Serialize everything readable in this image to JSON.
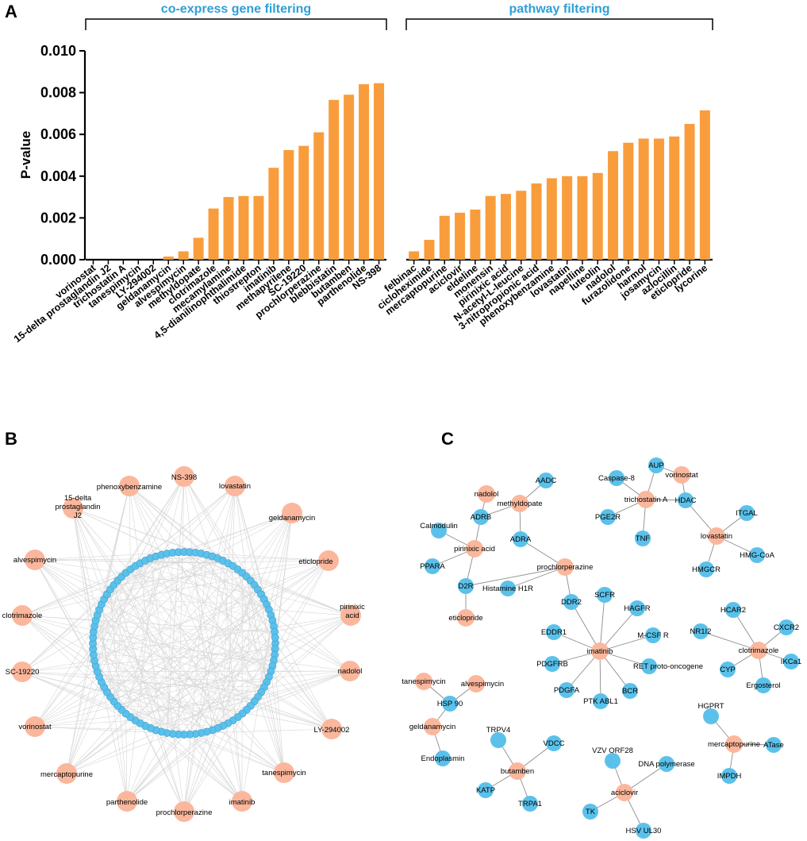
{
  "panels": {
    "a": "A",
    "b": "B",
    "c": "C"
  },
  "chart_data": {
    "type": "bar",
    "ylabel": "P-value",
    "ylim": [
      0,
      0.01
    ],
    "yticks": [
      "0.000",
      "0.002",
      "0.004",
      "0.006",
      "0.008",
      "0.010"
    ],
    "bar_color": "#f99d3c",
    "groups": [
      {
        "title": "co-express gene filtering",
        "categories": [
          "vorinostat",
          "15-delta prostaglandin J2",
          "trichostatin A",
          "tanespimycin",
          "LY-294002",
          "geldanamycin",
          "alvespimycin",
          "methyldopate",
          "clotrimazole",
          "mecamylamine",
          "4,5-dianilinophthalimide",
          "thiostrepton",
          "imatinib",
          "methapyrilene",
          "SC-19220",
          "prochlorperazine",
          "blebbistatin",
          "butamben",
          "parthenolide",
          "NS-398"
        ],
        "values": [
          0,
          0,
          0,
          0,
          0,
          0.00015,
          0.0004,
          0.00105,
          0.00245,
          0.003,
          0.00305,
          0.00305,
          0.0044,
          0.00525,
          0.00545,
          0.0061,
          0.00765,
          0.0079,
          0.0084,
          0.00845
        ]
      },
      {
        "title": "pathway filtering",
        "categories": [
          "felbinac",
          "cicloheximide",
          "mercaptopurine",
          "aciclovir",
          "eldeline",
          "monensin",
          "pirinixic acid",
          "N-acetyl-L-leucine",
          "3-nitropropionic acid",
          "phenoxybenzamine",
          "lovastatin",
          "napelline",
          "luteolin",
          "nadolol",
          "furazolidone",
          "harmol",
          "josamycin",
          "azlocillin",
          "eticlopride",
          "lycorine"
        ],
        "values": [
          0.0004,
          0.00095,
          0.0021,
          0.00225,
          0.0024,
          0.00305,
          0.00315,
          0.0033,
          0.00365,
          0.0039,
          0.004,
          0.004,
          0.00415,
          0.0052,
          0.0056,
          0.0058,
          0.0058,
          0.0059,
          0.0065,
          0.00715
        ]
      }
    ]
  },
  "network_b": {
    "drug_color": "#fbb79c",
    "target_color": "#5bc1ea",
    "drugs": [
      "NS-398",
      "lovastatin",
      "geldanamycin",
      "eticlopride",
      "pirinixic acid",
      "nadolol",
      "LY-294002",
      "tanespimycin",
      "imatinib",
      "prochlorperazine",
      "parthenolide",
      "mercaptopurine",
      "vorinostat",
      "SC-19220",
      "clotrimazole",
      "alvespimycin",
      "15-delta prostaglandin J2",
      "phenoxybenzamine"
    ],
    "target_count": 100
  },
  "network_c": {
    "nodes": [
      {
        "id": "nadolol",
        "type": "drug"
      },
      {
        "id": "methyldopate",
        "type": "drug"
      },
      {
        "id": "AADC",
        "type": "target"
      },
      {
        "id": "ADRB",
        "type": "target"
      },
      {
        "id": "Calmodulin",
        "type": "target"
      },
      {
        "id": "ADRA",
        "type": "target"
      },
      {
        "id": "pirinixic acid",
        "type": "drug"
      },
      {
        "id": "PPARA",
        "type": "target"
      },
      {
        "id": "prochlorperazine",
        "type": "drug"
      },
      {
        "id": "D2R",
        "type": "target"
      },
      {
        "id": "Histamine H1R",
        "type": "target"
      },
      {
        "id": "eticlopride",
        "type": "drug"
      },
      {
        "id": "AUP",
        "type": "target"
      },
      {
        "id": "vorinostat",
        "type": "drug"
      },
      {
        "id": "Caspase-8",
        "type": "target"
      },
      {
        "id": "trichostatin A",
        "type": "drug"
      },
      {
        "id": "HDAC",
        "type": "target"
      },
      {
        "id": "PGE2R",
        "type": "target"
      },
      {
        "id": "TNF",
        "type": "target"
      },
      {
        "id": "ITGAL",
        "type": "target"
      },
      {
        "id": "lovastatin",
        "type": "drug"
      },
      {
        "id": "HMG-CoA",
        "type": "target"
      },
      {
        "id": "HMGCR",
        "type": "target"
      },
      {
        "id": "DDR2",
        "type": "target"
      },
      {
        "id": "SCFR",
        "type": "target"
      },
      {
        "id": "HAGFR",
        "type": "target"
      },
      {
        "id": "EDDR1",
        "type": "target"
      },
      {
        "id": "imatinib",
        "type": "drug"
      },
      {
        "id": "M-CSF R",
        "type": "target"
      },
      {
        "id": "PDGFRB",
        "type": "target"
      },
      {
        "id": "RET proto-oncogene",
        "type": "target"
      },
      {
        "id": "PDGFA",
        "type": "target"
      },
      {
        "id": "BCR",
        "type": "target"
      },
      {
        "id": "PTK ABL1",
        "type": "target"
      },
      {
        "id": "HCAR2",
        "type": "target"
      },
      {
        "id": "NR1I2",
        "type": "target"
      },
      {
        "id": "CXCR2",
        "type": "target"
      },
      {
        "id": "clotrimazole",
        "type": "drug"
      },
      {
        "id": "CYP",
        "type": "target"
      },
      {
        "id": "IKCa1",
        "type": "target"
      },
      {
        "id": "Ergosterol",
        "type": "target"
      },
      {
        "id": "tanespimycin",
        "type": "drug"
      },
      {
        "id": "alvespimycin",
        "type": "drug"
      },
      {
        "id": "HSP 90",
        "type": "target"
      },
      {
        "id": "geldanamycin",
        "type": "drug"
      },
      {
        "id": "Endoplasmin",
        "type": "target"
      },
      {
        "id": "TRPV4",
        "type": "target"
      },
      {
        "id": "VDCC",
        "type": "target"
      },
      {
        "id": "butamben",
        "type": "drug"
      },
      {
        "id": "KATP",
        "type": "target"
      },
      {
        "id": "TRPA1",
        "type": "target"
      },
      {
        "id": "HGPRT",
        "type": "target"
      },
      {
        "id": "mercaptopurine",
        "type": "drug"
      },
      {
        "id": "ATase",
        "type": "target"
      },
      {
        "id": "IMPDH",
        "type": "target"
      },
      {
        "id": "VZV ORF28",
        "type": "target"
      },
      {
        "id": "DNA polymerase",
        "type": "target"
      },
      {
        "id": "aciclovir",
        "type": "drug"
      },
      {
        "id": "TK",
        "type": "target"
      },
      {
        "id": "HSV UL30",
        "type": "target"
      }
    ],
    "edges": [
      [
        "nadolol",
        "ADRB"
      ],
      [
        "methyldopate",
        "ADRB"
      ],
      [
        "methyldopate",
        "AADC"
      ],
      [
        "methyldopate",
        "ADRA"
      ],
      [
        "pirinixic acid",
        "Calmodulin"
      ],
      [
        "pirinixic acid",
        "ADRB"
      ],
      [
        "pirinixic acid",
        "PPARA"
      ],
      [
        "pirinixic acid",
        "D2R"
      ],
      [
        "prochlorperazine",
        "ADRA"
      ],
      [
        "prochlorperazine",
        "Histamine H1R"
      ],
      [
        "prochlorperazine",
        "D2R"
      ],
      [
        "prochlorperazine",
        "DDR2"
      ],
      [
        "eticlopride",
        "D2R"
      ],
      [
        "trichostatin A",
        "AUP"
      ],
      [
        "trichostatin A",
        "Caspase-8"
      ],
      [
        "trichostatin A",
        "HDAC"
      ],
      [
        "trichostatin A",
        "PGE2R"
      ],
      [
        "trichostatin A",
        "TNF"
      ],
      [
        "vorinostat",
        "AUP"
      ],
      [
        "vorinostat",
        "HDAC"
      ],
      [
        "lovastatin",
        "HDAC"
      ],
      [
        "lovastatin",
        "ITGAL"
      ],
      [
        "lovastatin",
        "HMG-CoA"
      ],
      [
        "lovastatin",
        "HMGCR"
      ],
      [
        "imatinib",
        "DDR2"
      ],
      [
        "imatinib",
        "SCFR"
      ],
      [
        "imatinib",
        "HAGFR"
      ],
      [
        "imatinib",
        "EDDR1"
      ],
      [
        "imatinib",
        "M-CSF R"
      ],
      [
        "imatinib",
        "PDGFRB"
      ],
      [
        "imatinib",
        "RET proto-oncogene"
      ],
      [
        "imatinib",
        "PDGFA"
      ],
      [
        "imatinib",
        "BCR"
      ],
      [
        "imatinib",
        "PTK ABL1"
      ],
      [
        "clotrimazole",
        "HCAR2"
      ],
      [
        "clotrimazole",
        "NR1I2"
      ],
      [
        "clotrimazole",
        "CXCR2"
      ],
      [
        "clotrimazole",
        "CYP"
      ],
      [
        "clotrimazole",
        "IKCa1"
      ],
      [
        "clotrimazole",
        "Ergosterol"
      ],
      [
        "tanespimycin",
        "HSP 90"
      ],
      [
        "alvespimycin",
        "HSP 90"
      ],
      [
        "geldanamycin",
        "HSP 90"
      ],
      [
        "geldanamycin",
        "Endoplasmin"
      ],
      [
        "butamben",
        "TRPV4"
      ],
      [
        "butamben",
        "VDCC"
      ],
      [
        "butamben",
        "KATP"
      ],
      [
        "butamben",
        "TRPA1"
      ],
      [
        "mercaptopurine",
        "HGPRT"
      ],
      [
        "mercaptopurine",
        "ATase"
      ],
      [
        "mercaptopurine",
        "IMPDH"
      ],
      [
        "aciclovir",
        "VZV ORF28"
      ],
      [
        "aciclovir",
        "DNA polymerase"
      ],
      [
        "aciclovir",
        "TK"
      ],
      [
        "aciclovir",
        "HSV UL30"
      ]
    ]
  }
}
